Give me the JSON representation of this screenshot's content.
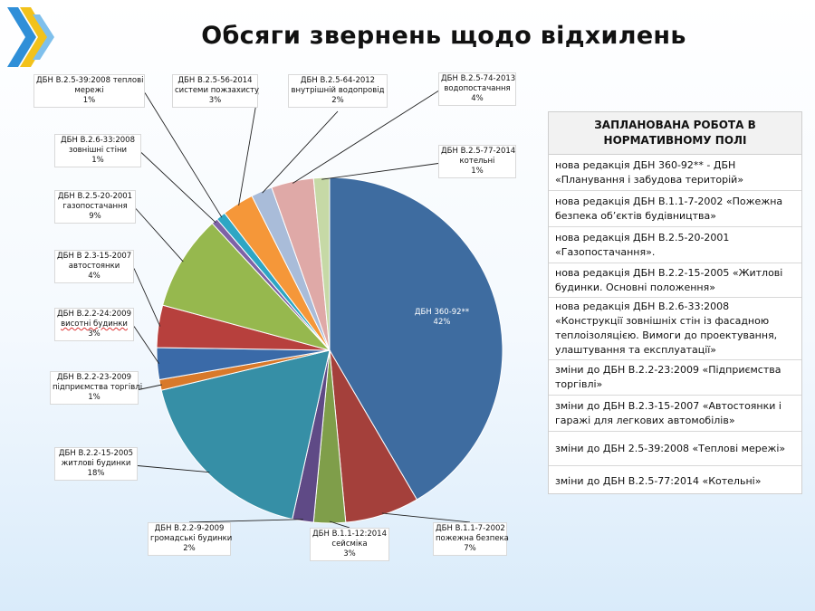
{
  "title": "Обсяги звернень щодо відхилень",
  "colors": {
    "logo_blue": "#2f8fd8",
    "logo_yellow": "#f2c21b",
    "panel_head_bg": "#f2f2f2"
  },
  "chart_data": {
    "type": "pie",
    "title": "",
    "start_angle_deg": 0,
    "direction": "clockwise",
    "slices": [
      {
        "name": "ДБН 360-92**",
        "value": 42,
        "label_value": "42%",
        "color": "#3e6ca0"
      },
      {
        "name": "ДБН В.1.1-7-2002 пожежна безпека",
        "value": 7,
        "label_value": "7%",
        "color": "#a4403b"
      },
      {
        "name": "ДБН В.1.1-12:2014 сейсміка",
        "value": 3,
        "label_value": "3%",
        "color": "#7f9e4a"
      },
      {
        "name": "ДБН В.2.2-9-2009 громадські будинки",
        "value": 2,
        "label_value": "2%",
        "color": "#5f4a86"
      },
      {
        "name": "ДБН В.2.2-15-2005 житлові будинки",
        "value": 18,
        "label_value": "18%",
        "color": "#368fa6"
      },
      {
        "name": "ДБН В.2.2-23-2009 підприємства торгівлі",
        "value": 1,
        "label_value": "1%",
        "color": "#d8792a"
      },
      {
        "name": "ДБН В.2.2-24:2009 висотні будинки",
        "value": 3,
        "label_value": "3%",
        "color": "#3a6aa8"
      },
      {
        "name": "ДБН В 2.3-15-2007 автостоянки",
        "value": 4,
        "label_value": "4%",
        "color": "#b7403d"
      },
      {
        "name": "ДБН В.2.5-20-2001 газопостачання",
        "value": 9,
        "label_value": "9%",
        "color": "#96b84e"
      },
      {
        "name": "ДБН В.2.6-33:2008 зовнішні стіни",
        "value": 0.6,
        "label_value": "1%",
        "color": "#7e62a6"
      },
      {
        "name": "ДБН В.2.5-39:2008 теплові мережі",
        "value": 0.9,
        "label_value": "1%",
        "color": "#2ea6c4"
      },
      {
        "name": "ДБН В.2.5-56-2014 системи пожзахисту",
        "value": 3,
        "label_value": "3%",
        "color": "#f59739"
      },
      {
        "name": "ДБН В.2.5-64-2012 внутрішній водопровід",
        "value": 2,
        "label_value": "2%",
        "color": "#a9bcd9"
      },
      {
        "name": "ДБН В.2.5-74-2013 водопостачання",
        "value": 4,
        "label_value": "4%",
        "color": "#dfa9a7"
      },
      {
        "name": "ДБН В.2.5-77-2014 котельні",
        "value": 1.5,
        "label_value": "1%",
        "color": "#c6d9a6"
      }
    ],
    "labels": [
      {
        "lines": [
          "ДБН 360-92**",
          "42%"
        ]
      },
      {
        "lines": [
          "ДБН В.1.1-7-2002",
          "пожежна безпека",
          "7%"
        ]
      },
      {
        "lines": [
          "ДБН В.1.1-12:2014",
          "сейсміка",
          "3%"
        ]
      },
      {
        "lines": [
          "ДБН В.2.2-9-2009",
          "громадські будинки",
          "2%"
        ]
      },
      {
        "lines": [
          "ДБН В.2.2-15-2005",
          "житлові будинки",
          "18%"
        ]
      },
      {
        "lines": [
          "ДБН В.2.2-23-2009",
          "підприємства торгівлі",
          "1%"
        ]
      },
      {
        "lines": [
          "ДБН В.2.2-24:2009",
          "висотні будинки",
          "3%"
        ]
      },
      {
        "lines": [
          "ДБН В 2.3-15-2007",
          "автостоянки",
          "4%"
        ]
      },
      {
        "lines": [
          "ДБН В.2.5-20-2001",
          "газопостачання",
          "9%"
        ]
      },
      {
        "lines": [
          "ДБН В.2.6-33:2008",
          "зовнішні стіни",
          "1%"
        ]
      },
      {
        "lines": [
          "ДБН В.2.5-39:2008 теплові",
          "мережі",
          "1%"
        ]
      },
      {
        "lines": [
          "ДБН В.2.5-56-2014",
          "системи пожзахисту",
          "3%"
        ]
      },
      {
        "lines": [
          "ДБН В.2.5-64-2012",
          "внутрішній водопровід",
          "2%"
        ]
      },
      {
        "lines": [
          "ДБН В.2.5-74-2013",
          "водопостачання",
          "4%"
        ]
      },
      {
        "lines": [
          "ДБН В.2.5-77-2014",
          "котельні",
          "1%"
        ]
      }
    ]
  },
  "panel": {
    "heading": "ЗАПЛАНОВАНА РОБОТА В НОРМАТИВНОМУ ПОЛІ",
    "items": [
      "нова редакція ДБН 360-92** - ДБН «Планування і забудова територій»",
      "нова редакція ДБН В.1.1-7-2002 «Пожежна безпека об’єктів будівництва»",
      "нова редакція ДБН В.2.5-20-2001 «Газопостачання».",
      "нова редакція ДБН В.2.2-15-2005 «Житлові будинки. Основні положення»",
      "нова редакція ДБН В.2.6-33:2008 «Конструкції зовнішніх стін із фасадною теплоізоляцією. Вимоги до проектування, улаштування та експлуатації»",
      "зміни до ДБН В.2.2-23:2009 «Підприємства торгівлі»",
      "зміни до ДБН В.2.3-15-2007 «Автостоянки і гаражі для легкових автомобілів»",
      "зміни до ДБН 2.5-39:2008 «Теплові мережі»",
      "зміни до ДБН В.2.5-77:2014 «Котельні»"
    ]
  }
}
